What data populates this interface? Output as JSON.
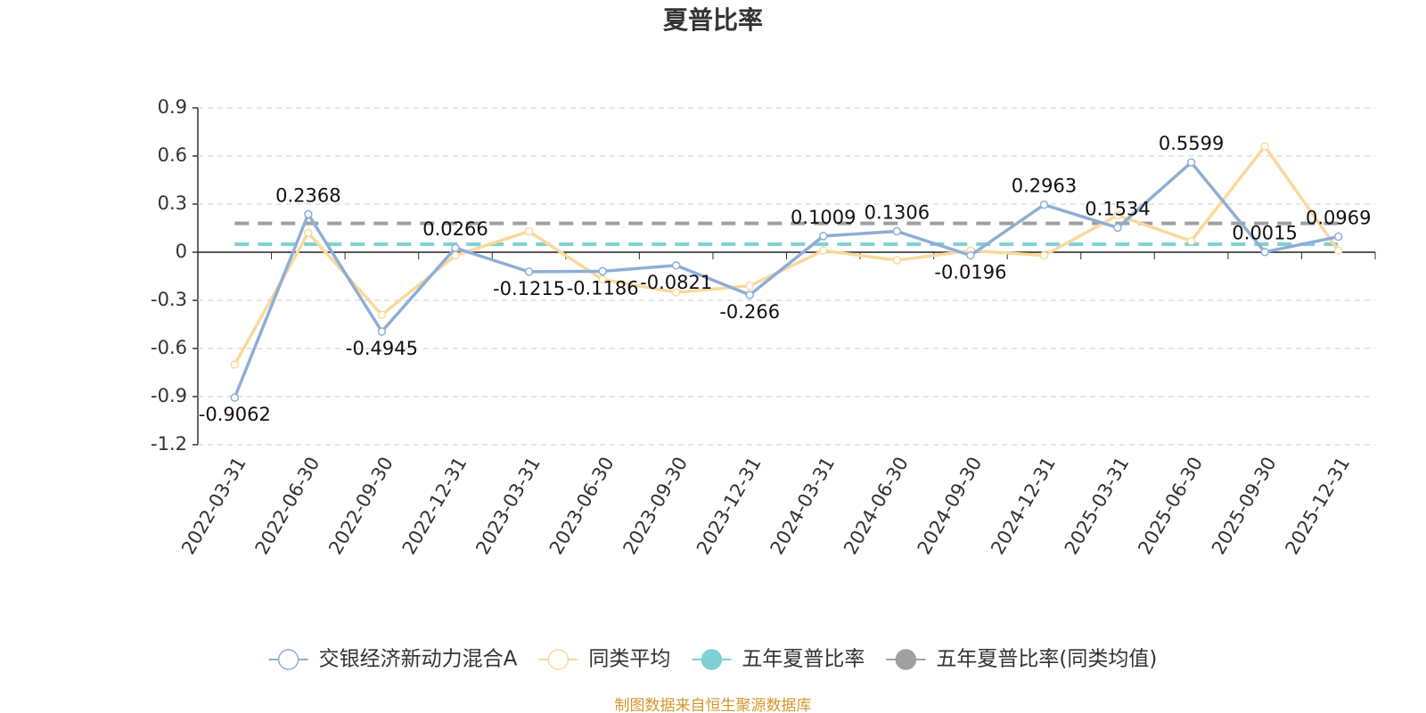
{
  "chart_data": {
    "type": "line",
    "title": "夏普比率",
    "categories": [
      "2022-03-31",
      "2022-06-30",
      "2022-09-30",
      "2022-12-31",
      "2023-03-31",
      "2023-06-30",
      "2023-09-30",
      "2023-12-31",
      "2024-03-31",
      "2024-06-30",
      "2024-09-30",
      "2024-12-31",
      "2025-03-31",
      "2025-06-30",
      "2025-09-30",
      "2025-12-31"
    ],
    "series": [
      {
        "name": "交银经济新动力混合A",
        "color": "#8eaed8",
        "show_labels": true,
        "values": [
          -0.9062,
          0.2368,
          -0.4945,
          0.0266,
          -0.1215,
          -0.1186,
          -0.0821,
          -0.266,
          0.1009,
          0.1306,
          -0.0196,
          0.2963,
          0.1534,
          0.5599,
          0.0015,
          0.0969
        ]
      },
      {
        "name": "同类平均",
        "color": "#fad99b",
        "show_labels": false,
        "values": [
          -0.7,
          0.12,
          -0.39,
          -0.02,
          0.13,
          -0.17,
          -0.25,
          -0.21,
          0.01,
          -0.05,
          0.01,
          -0.02,
          0.23,
          0.07,
          0.66,
          0.01
        ]
      }
    ],
    "reference_lines": [
      {
        "name": "五年夏普比率",
        "color": "#7fd1d3",
        "value": 0.05
      },
      {
        "name": "五年夏普比率(同类均值)",
        "color": "#a0a0a0",
        "value": 0.18
      }
    ],
    "ylim": [
      -1.2,
      0.9
    ],
    "yticks": [
      -1.2,
      -0.9,
      -0.6,
      -0.3,
      0,
      0.3,
      0.6,
      0.9
    ],
    "grid": true,
    "legend": "bottom",
    "source": "制图数据来自恒生聚源数据库"
  }
}
